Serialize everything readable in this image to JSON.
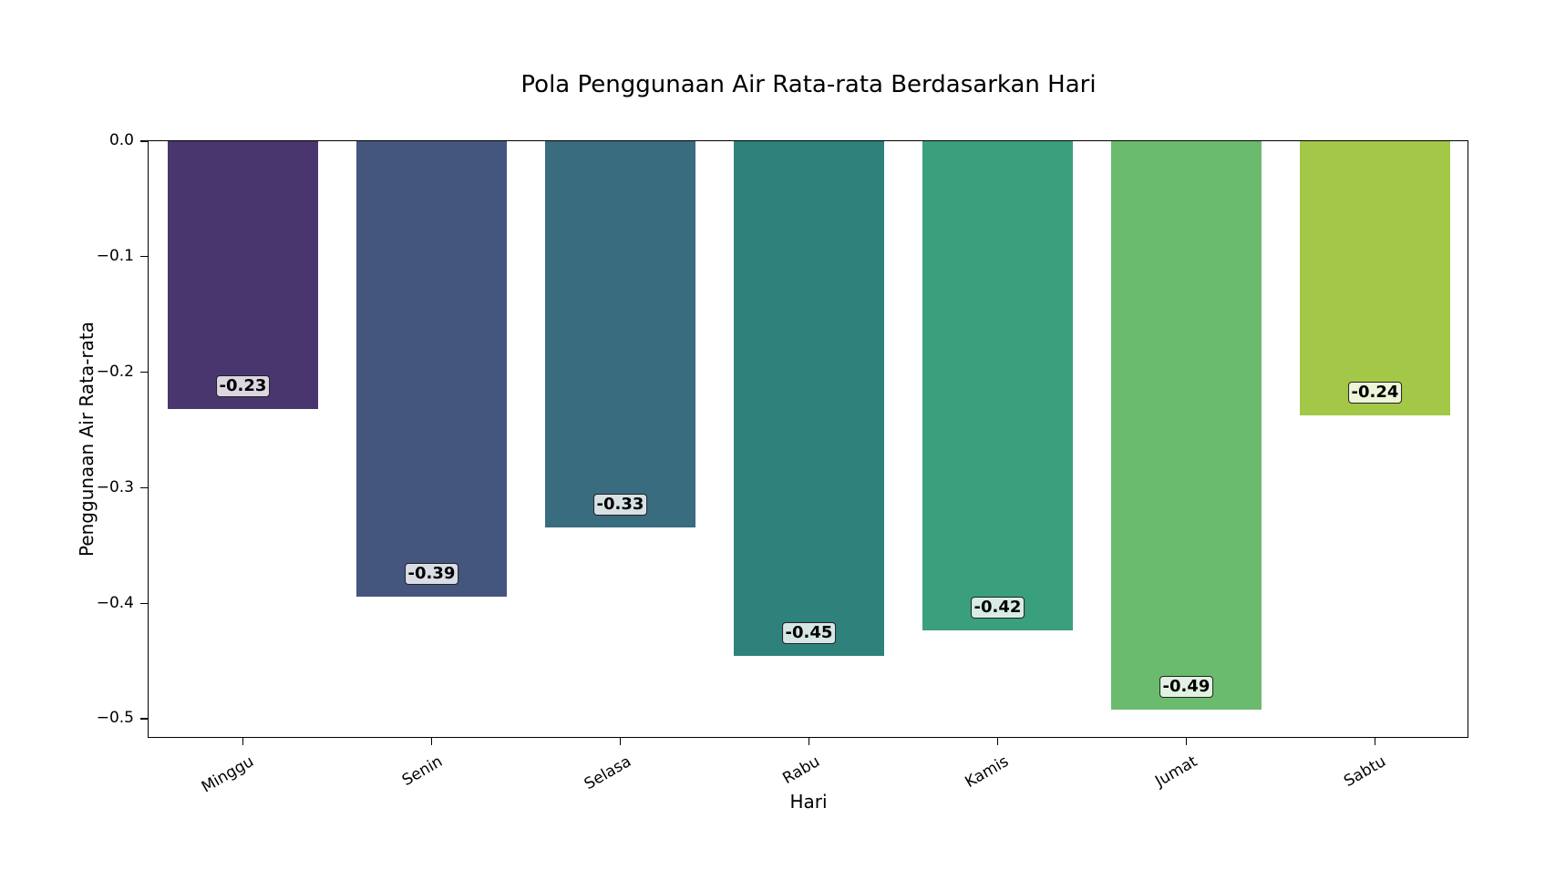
{
  "chart_data": {
    "type": "bar",
    "title": "Pola Penggunaan Air Rata-rata Berdasarkan Hari",
    "xlabel": "Hari",
    "ylabel": "Penggunaan Air Rata-rata",
    "categories": [
      "Minggu",
      "Senin",
      "Selasa",
      "Rabu",
      "Kamis",
      "Jumat",
      "Sabtu"
    ],
    "values": [
      -0.232,
      -0.394,
      -0.334,
      -0.445,
      -0.423,
      -0.492,
      -0.237
    ],
    "value_labels": [
      "-0.23",
      "-0.39",
      "-0.33",
      "-0.45",
      "-0.42",
      "-0.49",
      "-0.24"
    ],
    "colors": [
      "#4a366e",
      "#45567e",
      "#3a6c7f",
      "#2e827b",
      "#3a9f7d",
      "#6abb6d",
      "#a3c747"
    ],
    "ylim": [
      -0.517,
      0.0
    ],
    "yticks": [
      0.0,
      -0.1,
      -0.2,
      -0.3,
      -0.4,
      -0.5
    ],
    "ytick_labels": [
      "0.0",
      "−0.1",
      "−0.2",
      "−0.3",
      "−0.4",
      "−0.5"
    ],
    "grid": false,
    "legend": null,
    "xtick_rotation": 30
  }
}
